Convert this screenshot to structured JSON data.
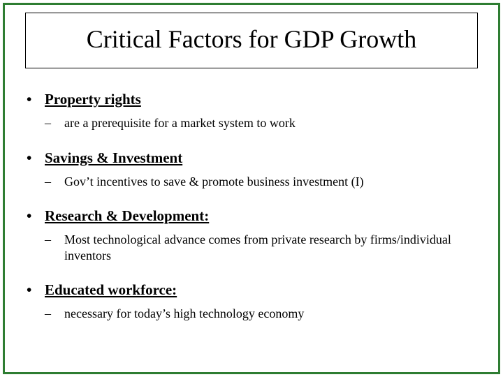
{
  "slide": {
    "title": "Critical Factors for GDP Growth",
    "border_color": "#2e7d32",
    "title_border_color": "#000000",
    "background": "#ffffff",
    "title_fontsize": 36,
    "main_fontsize": 21,
    "sub_fontsize": 18,
    "items": [
      {
        "label": "Property rights",
        "underline": true,
        "sub": "are a prerequisite for a market system to work"
      },
      {
        "label": "Savings & Investment",
        "underline": true,
        "sub": "Gov’t incentives to save & promote business investment (I)"
      },
      {
        "label": "Research & Development:",
        "underline": true,
        "sub": "Most technological advance comes from private research by firms/individual inventors"
      },
      {
        "label": "Educated workforce:",
        "underline": true,
        "sub": " necessary for today’s high technology economy"
      }
    ]
  }
}
